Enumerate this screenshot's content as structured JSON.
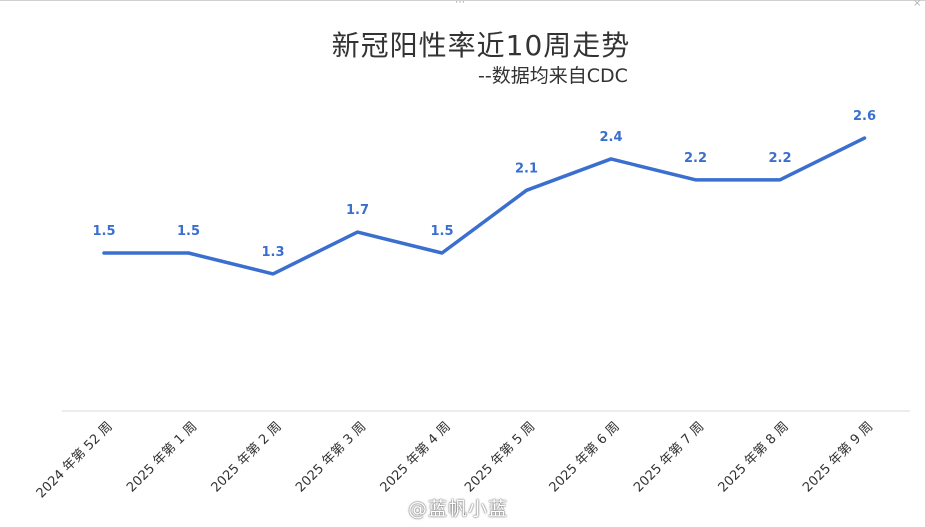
{
  "chart_data": {
    "type": "line",
    "title": "新冠阳性率近10周走势",
    "subtitle": "--数据均来自CDC",
    "categories": [
      "2024 年第 52 周",
      "2025 年第 1 周",
      "2025 年第 2 周",
      "2025 年第 3 周",
      "2025 年第 4 周",
      "2025 年第 5 周",
      "2025 年第 6 周",
      "2025 年第 7 周",
      "2025 年第 8 周",
      "2025 年第 9 周"
    ],
    "values": [
      1.5,
      1.5,
      1.3,
      1.7,
      1.5,
      2.1,
      2.4,
      2.2,
      2.2,
      2.6
    ],
    "value_labels": [
      "1.5",
      "1.5",
      "1.3",
      "1.7",
      "1.5",
      "2.1",
      "2.4",
      "2.2",
      "2.2",
      "2.6"
    ],
    "line_color": "#3a6fcf",
    "drop_lines": true,
    "grid": false
  },
  "watermark": "@蓝帆小蓝",
  "window": {
    "dots": "⋯",
    "corner": "×"
  }
}
